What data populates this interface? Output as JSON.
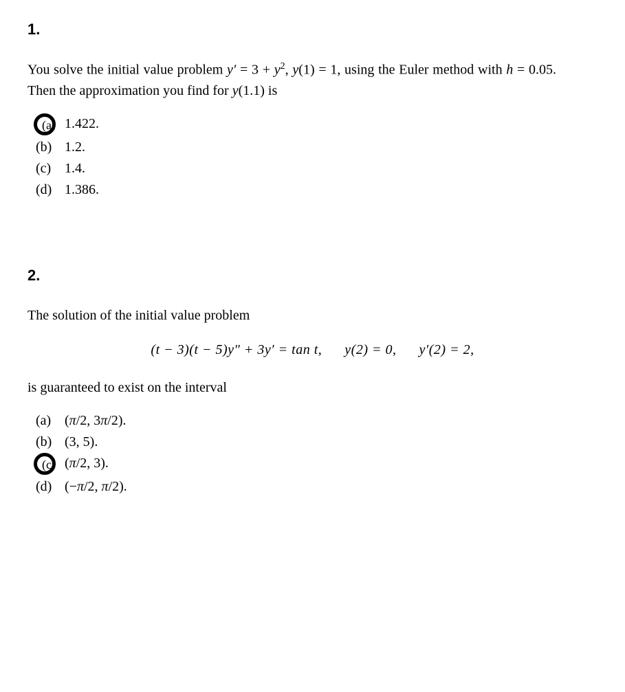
{
  "q1": {
    "number": "1.",
    "text_html": "You solve the initial value problem <span class='i-math'>y′</span> = 3 + <span class='i-math'>y</span><sup>2</sup>, <span class='i-math'>y</span>(1) = 1, using the Euler method with <span class='i-math'>h</span> = 0.05. Then the approximation you find for <span class='i-math'>y</span>(1.1) is",
    "options": [
      {
        "label": "(a)",
        "text": "1.422.",
        "selected": true
      },
      {
        "label": "(b)",
        "text": "1.2.",
        "selected": false
      },
      {
        "label": "(c)",
        "text": "1.4.",
        "selected": false
      },
      {
        "label": "(d)",
        "text": "1.386.",
        "selected": false
      }
    ]
  },
  "q2": {
    "number": "2.",
    "intro": "The solution of the initial value problem",
    "equation_html": "(<span class='i-math'>t</span> − 3)(<span class='i-math'>t</span> − 5)<span class='i-math'>y″</span> + 3<span class='i-math'>y′</span> = tan <span class='i-math'>t</span>,&nbsp;&nbsp;&nbsp;&nbsp;&nbsp;&nbsp;<span class='i-math'>y</span>(2) = 0,&nbsp;&nbsp;&nbsp;&nbsp;&nbsp;&nbsp;<span class='i-math'>y′</span>(2) = 2,",
    "outro": "is guaranteed to exist on the interval",
    "options": [
      {
        "label": "(a)",
        "text_html": "(<span class='i-math'>π</span>/2, 3<span class='i-math'>π</span>/2).",
        "selected": false
      },
      {
        "label": "(b)",
        "text_html": "(3, 5).",
        "selected": false
      },
      {
        "label": "(c)",
        "text_html": "(<span class='i-math'>π</span>/2, 3).",
        "selected": true
      },
      {
        "label": "(d)",
        "text_html": "(−<span class='i-math'>π</span>/2, <span class='i-math'>π</span>/2).",
        "selected": false
      }
    ]
  },
  "style": {
    "circle_stroke": "#000000",
    "circle_stroke_width": 4
  }
}
